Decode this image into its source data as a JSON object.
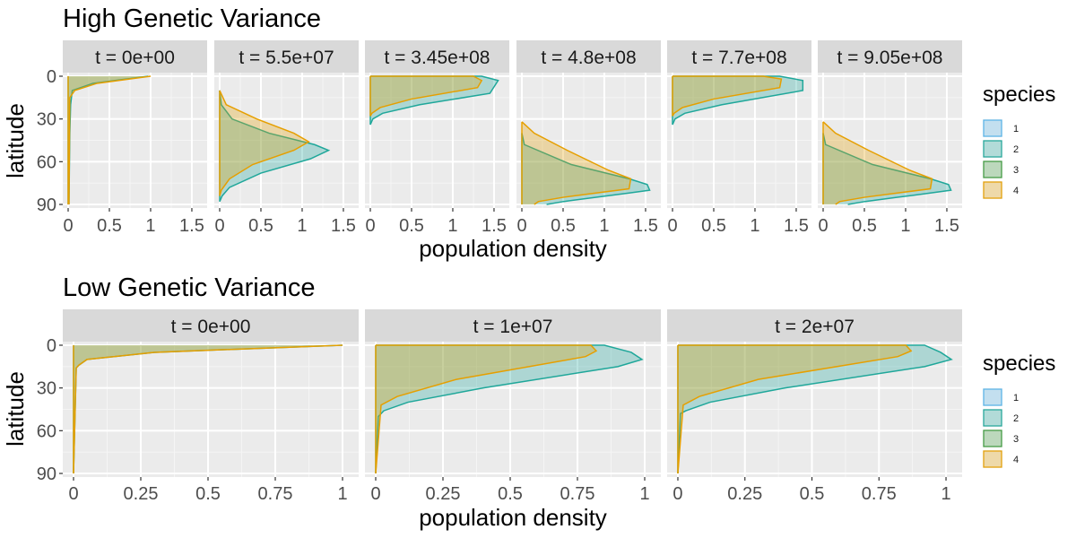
{
  "legend": {
    "title": "species",
    "items": [
      {
        "label": "1",
        "fill": "#56B4E9",
        "stroke": "#56B4E9"
      },
      {
        "label": "2",
        "fill": "#1FA79A",
        "stroke": "#1FA79A"
      },
      {
        "label": "3",
        "fill": "#3E9A3E",
        "stroke": "#3E9A3E"
      },
      {
        "label": "4",
        "fill": "#E69F00",
        "stroke": "#E69F00"
      }
    ]
  },
  "colors": {
    "panel_bg": "#EBEBEB",
    "strip_bg": "#D9D9D9",
    "grid_major": "#FFFFFF",
    "text": "#1A1A1A",
    "tick_text": "#4D4D4D"
  },
  "chart_data": [
    {
      "type": "area",
      "title": "High Genetic Variance",
      "xlabel": "population density",
      "ylabel": "latitude",
      "xlim": [
        0,
        1.62
      ],
      "ylim": [
        0,
        90
      ],
      "y_reversed": true,
      "xticks": [
        0,
        0.5,
        1,
        1.5
      ],
      "xtick_labels": [
        "0",
        "0.5",
        "1",
        "1.5"
      ],
      "yticks": [
        0,
        30,
        60,
        90
      ],
      "ytick_labels": [
        "0",
        "30",
        "60",
        "90"
      ],
      "grid": true,
      "facets": [
        {
          "label": "t = 0e+00",
          "series": [
            {
              "name": "2",
              "points": [
                [
                  0.97,
                  0
                ],
                [
                  0.3,
                  5
                ],
                [
                  0.05,
                  10
                ],
                [
                  0.03,
                  20
                ],
                [
                  0.02,
                  40
                ],
                [
                  0.01,
                  90
                ]
              ]
            },
            {
              "name": "4",
              "points": [
                [
                  1.0,
                  0
                ],
                [
                  0.35,
                  5
                ],
                [
                  0.08,
                  10
                ],
                [
                  0.02,
                  15
                ],
                [
                  0.01,
                  90
                ]
              ]
            }
          ]
        },
        {
          "label": "t = 5.5e+07",
          "series": [
            {
              "name": "2",
              "points": [
                [
                  0,
                  10
                ],
                [
                  0.02,
                  20
                ],
                [
                  0.15,
                  30
                ],
                [
                  0.6,
                  40
                ],
                [
                  1.15,
                  48
                ],
                [
                  1.32,
                  52
                ],
                [
                  1.1,
                  58
                ],
                [
                  0.5,
                  68
                ],
                [
                  0.12,
                  78
                ],
                [
                  0.03,
                  84
                ],
                [
                  0,
                  88
                ]
              ]
            },
            {
              "name": "4",
              "points": [
                [
                  0,
                  10
                ],
                [
                  0.08,
                  20
                ],
                [
                  0.45,
                  30
                ],
                [
                  0.9,
                  40
                ],
                [
                  1.08,
                  46
                ],
                [
                  0.9,
                  52
                ],
                [
                  0.4,
                  62
                ],
                [
                  0.12,
                  72
                ],
                [
                  0.02,
                  80
                ],
                [
                  0,
                  84
                ]
              ]
            }
          ]
        },
        {
          "label": "t = 3.45e+08",
          "series": [
            {
              "name": "2",
              "points": [
                [
                  0,
                  0
                ],
                [
                  1.35,
                  0
                ],
                [
                  1.55,
                  3
                ],
                [
                  1.45,
                  12
                ],
                [
                  0.6,
                  20
                ],
                [
                  0.15,
                  26
                ],
                [
                  0.03,
                  30
                ],
                [
                  0,
                  34
                ]
              ]
            },
            {
              "name": "4",
              "points": [
                [
                  0,
                  0
                ],
                [
                  1.25,
                  0
                ],
                [
                  1.35,
                  3
                ],
                [
                  1.3,
                  8
                ],
                [
                  0.5,
                  16
                ],
                [
                  0.12,
                  22
                ],
                [
                  0.02,
                  26
                ],
                [
                  0,
                  28
                ]
              ]
            }
          ]
        },
        {
          "label": "t = 4.8e+08",
          "series": [
            {
              "name": "2",
              "points": [
                [
                  0,
                  40
                ],
                [
                  0.03,
                  48
                ],
                [
                  0.6,
                  62
                ],
                [
                  1.3,
                  72
                ],
                [
                  1.52,
                  76
                ],
                [
                  1.55,
                  80
                ],
                [
                  1.3,
                  82
                ],
                [
                  0.9,
                  85
                ],
                [
                  0.5,
                  88
                ],
                [
                  0.3,
                  90
                ]
              ]
            },
            {
              "name": "4",
              "points": [
                [
                  0,
                  32
                ],
                [
                  0.15,
                  40
                ],
                [
                  0.55,
                  52
                ],
                [
                  1.05,
                  66
                ],
                [
                  1.32,
                  72
                ],
                [
                  1.3,
                  79
                ],
                [
                  0.9,
                  82
                ],
                [
                  0.5,
                  85
                ],
                [
                  0.2,
                  88
                ],
                [
                  0.15,
                  90
                ]
              ]
            }
          ]
        },
        {
          "label": "t = 7.7e+08",
          "series": [
            {
              "name": "2",
              "points": [
                [
                  0,
                  0
                ],
                [
                  1.3,
                  0
                ],
                [
                  1.58,
                  3
                ],
                [
                  1.58,
                  10
                ],
                [
                  0.6,
                  20
                ],
                [
                  0.15,
                  26
                ],
                [
                  0.03,
                  30
                ],
                [
                  0,
                  34
                ]
              ]
            },
            {
              "name": "4",
              "points": [
                [
                  0,
                  0
                ],
                [
                  1.1,
                  0
                ],
                [
                  1.32,
                  2
                ],
                [
                  1.3,
                  8
                ],
                [
                  0.5,
                  16
                ],
                [
                  0.12,
                  22
                ],
                [
                  0.02,
                  26
                ],
                [
                  0,
                  28
                ]
              ]
            }
          ]
        },
        {
          "label": "t = 9.05e+08",
          "series": [
            {
              "name": "2",
              "points": [
                [
                  0,
                  40
                ],
                [
                  0.03,
                  48
                ],
                [
                  0.6,
                  62
                ],
                [
                  1.3,
                  72
                ],
                [
                  1.52,
                  76
                ],
                [
                  1.55,
                  80
                ],
                [
                  1.3,
                  82
                ],
                [
                  0.9,
                  85
                ],
                [
                  0.5,
                  88
                ],
                [
                  0.3,
                  90
                ]
              ]
            },
            {
              "name": "4",
              "points": [
                [
                  0,
                  32
                ],
                [
                  0.15,
                  40
                ],
                [
                  0.55,
                  52
                ],
                [
                  1.05,
                  66
                ],
                [
                  1.32,
                  72
                ],
                [
                  1.3,
                  79
                ],
                [
                  0.9,
                  82
                ],
                [
                  0.5,
                  85
                ],
                [
                  0.2,
                  88
                ],
                [
                  0.15,
                  90
                ]
              ]
            }
          ]
        }
      ]
    },
    {
      "type": "area",
      "title": "Low Genetic Variance",
      "xlabel": "population density",
      "ylabel": "latitude",
      "xlim": [
        -0.02,
        1.04
      ],
      "ylim": [
        0,
        90
      ],
      "y_reversed": true,
      "xticks": [
        0,
        0.25,
        0.5,
        0.75,
        1
      ],
      "xtick_labels": [
        "0",
        "0.25",
        "0.5",
        "0.75",
        "1"
      ],
      "yticks": [
        0,
        30,
        60,
        90
      ],
      "ytick_labels": [
        "0",
        "30",
        "60",
        "90"
      ],
      "grid": true,
      "facets": [
        {
          "label": "t = 0e+00",
          "series": [
            {
              "name": "2",
              "points": [
                [
                  1.0,
                  0
                ],
                [
                  0.3,
                  5
                ],
                [
                  0.05,
                  10
                ],
                [
                  0.02,
                  14
                ],
                [
                  0.01,
                  16
                ],
                [
                  0,
                  90
                ]
              ]
            },
            {
              "name": "4",
              "points": [
                [
                  1.0,
                  0
                ],
                [
                  0.3,
                  5
                ],
                [
                  0.05,
                  10
                ],
                [
                  0.02,
                  14
                ],
                [
                  0.01,
                  16
                ],
                [
                  0,
                  90
                ]
              ]
            }
          ]
        },
        {
          "label": "t = 1e+07",
          "series": [
            {
              "name": "2",
              "points": [
                [
                  0,
                  0
                ],
                [
                  0.85,
                  0
                ],
                [
                  0.95,
                  5
                ],
                [
                  0.99,
                  10
                ],
                [
                  0.9,
                  15
                ],
                [
                  0.4,
                  30
                ],
                [
                  0.12,
                  40
                ],
                [
                  0.03,
                  46
                ],
                [
                  0.01,
                  50
                ],
                [
                  0,
                  90
                ]
              ]
            },
            {
              "name": "4",
              "points": [
                [
                  0,
                  0
                ],
                [
                  0.8,
                  0
                ],
                [
                  0.82,
                  4
                ],
                [
                  0.78,
                  8
                ],
                [
                  0.3,
                  24
                ],
                [
                  0.08,
                  36
                ],
                [
                  0.02,
                  42
                ],
                [
                  0,
                  90
                ]
              ]
            }
          ]
        },
        {
          "label": "t = 2e+07",
          "series": [
            {
              "name": "2",
              "points": [
                [
                  0,
                  0
                ],
                [
                  0.92,
                  0
                ],
                [
                  0.98,
                  5
                ],
                [
                  1.02,
                  10
                ],
                [
                  0.92,
                  15
                ],
                [
                  0.4,
                  30
                ],
                [
                  0.12,
                  40
                ],
                [
                  0.03,
                  46
                ],
                [
                  0.01,
                  48
                ],
                [
                  0,
                  90
                ]
              ]
            },
            {
              "name": "4",
              "points": [
                [
                  0,
                  0
                ],
                [
                  0.85,
                  0
                ],
                [
                  0.87,
                  4
                ],
                [
                  0.82,
                  8
                ],
                [
                  0.3,
                  24
                ],
                [
                  0.08,
                  36
                ],
                [
                  0.02,
                  42
                ],
                [
                  0,
                  90
                ]
              ]
            }
          ]
        }
      ]
    }
  ]
}
